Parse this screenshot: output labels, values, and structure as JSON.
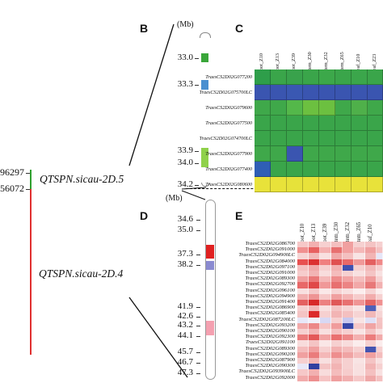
{
  "panels": {
    "b": "B",
    "c": "C",
    "d": "D",
    "e": "E"
  },
  "unit": "(Mb)",
  "markers": {
    "upper": "96297",
    "lower": "56072"
  },
  "qtl": {
    "upper": "QTSPN.sicau-2D.5",
    "lower": "QTSPN.sicau-2D.4"
  },
  "chr_b": {
    "positions": [
      "33.0",
      "33.3",
      "33.9",
      "34.0",
      "34.2"
    ],
    "block_colors": [
      "#3aa63a",
      "#4a8fd0",
      "#8fd14a"
    ]
  },
  "chr_d": {
    "positions": [
      "34.6",
      "35.0",
      "37.3",
      "38.2",
      "41.9",
      "42.6",
      "43.2",
      "44.1",
      "45.7",
      "46.7",
      "47.3"
    ],
    "block_colors": [
      "#e02020",
      "#8a8ad0",
      "#f4a0b0"
    ]
  },
  "heatmap_c": {
    "columns": [
      "root_Z10",
      "root_Z13",
      "root_Z39",
      "stem_Z30",
      "stem_Z32",
      "stem_Z65",
      "leaf_Z10",
      "leaf_Z23"
    ],
    "genes": [
      "TraesCS2D02G077200",
      "TraesCS2D02G075700LC",
      "TraesCS2D02G079600",
      "TraesCS2D02G077500",
      "TraesCS2D02G074700LC",
      "TraesCS2D02G077900",
      "TraesCS2D02G077400",
      "TraesCS2D02G080600"
    ],
    "colors": [
      [
        "#2e9e4a",
        "#3aa54a",
        "#39a24c",
        "#3aa54a",
        "#3ca84a",
        "#3aa54a",
        "#3ba64b",
        "#3aa54a"
      ],
      [
        "#3a55b0",
        "#3a55b0",
        "#3a58b2",
        "#3a55b0",
        "#3a55b0",
        "#3a55b0",
        "#3a55b0",
        "#3a55b0"
      ],
      [
        "#3fa84a",
        "#3fa84a",
        "#54b84a",
        "#6cc040",
        "#6cc040",
        "#3fa84a",
        "#4fb04a",
        "#3fa84a"
      ],
      [
        "#3aa54a",
        "#3aa54a",
        "#3aa54a",
        "#3aa54a",
        "#3aa54a",
        "#3aa54a",
        "#3aa54a",
        "#3aa54a"
      ],
      [
        "#3aa54a",
        "#3aa54a",
        "#3aa54a",
        "#3aa54a",
        "#3aa54a",
        "#3aa54a",
        "#3aa54a",
        "#3aa54a"
      ],
      [
        "#3fa84a",
        "#3fa84a",
        "#3a55b0",
        "#3fa84a",
        "#3fa84a",
        "#3fa84a",
        "#3fa84a",
        "#3fa84a"
      ],
      [
        "#2f5eb5",
        "#3aa54a",
        "#3aa54a",
        "#3aa54a",
        "#3aa54a",
        "#3aa54a",
        "#3aa54a",
        "#3aa54a"
      ],
      [
        "#e8e23a",
        "#e8e23a",
        "#e6e23a",
        "#e8e23a",
        "#e8e23a",
        "#e8e23a",
        "#e8e23a",
        "#e8e23a"
      ]
    ]
  },
  "heatmap_e": {
    "columns": [
      "root_Z10",
      "root_Z13",
      "root_Z39",
      "stem_Z30",
      "stem_Z32",
      "stem_Z65",
      "leaf_Z10",
      "leaf_Z23"
    ],
    "genes": [
      "TraesCS2D02G086700",
      "TraesCS2D02G091000",
      "TraesCS2D02G094900LC",
      "TraesCS2D02G084000",
      "TraesCS2D02G097100",
      "TraesCS2D02G091000",
      "TraesCS2D02G089300",
      "TraesCS2D02G092700",
      "TraesCS2D02G096100",
      "TraesCS2D02G094900",
      "TraesCS2D02G091400",
      "TraesCS2D02G086900",
      "TraesCS2D02G085400",
      "TraesCS2D02G087200LC",
      "TraesCS2D02G093200",
      "TraesCS2D02G090100",
      "TraesCS2D02G092300",
      "TraesCS2D02G091100",
      "TraesCS2D02G089300",
      "TraesCS2D02G090200",
      "TraesCS2D02G087900",
      "TraesCS2D02G090300",
      "TraesCS2D02G093900LC",
      "TraesCS2D02G092000"
    ],
    "colors": [
      [
        "#f6c8c8",
        "#f2b0b0",
        "#f6d0d0",
        "#f4c0c0",
        "#f0a0a0",
        "#f6d0d0",
        "#f4c4c4",
        "#f6d0d0"
      ],
      [
        "#f09090",
        "#e86060",
        "#f4b0b0",
        "#e87070",
        "#f2a0a0",
        "#f4b8b8",
        "#f0a0a0",
        "#f4c0c0"
      ],
      [
        "#f6d4d4",
        "#f2b8b8",
        "#f8e0e0",
        "#f0a8a8",
        "#f4c0c0",
        "#f8e4e4",
        "#f2b4b4",
        "#e6e6f8"
      ],
      [
        "#e85050",
        "#dc3030",
        "#f08080",
        "#e05050",
        "#e86868",
        "#f09898",
        "#e46060",
        "#f08888"
      ],
      [
        "#f4c0c0",
        "#f0a8a8",
        "#f6d0d0",
        "#f2b0b0",
        "#4050b0",
        "#f6d0d0",
        "#f2b8b8",
        "#f6d0d0"
      ],
      [
        "#f6cccc",
        "#f2b4b4",
        "#f8dcdc",
        "#f4bcbc",
        "#f6d0d0",
        "#f8e0e0",
        "#f4c4c4",
        "#f8e0e0"
      ],
      [
        "#f0a0a0",
        "#ea7878",
        "#f4b8b8",
        "#ee8c8c",
        "#f2a4a4",
        "#f4bcbc",
        "#f09c9c",
        "#f6d0d0"
      ],
      [
        "#e86868",
        "#e04848",
        "#f09898",
        "#e87070",
        "#ec8484",
        "#f2a8a8",
        "#e87878",
        "#f2b0b0"
      ],
      [
        "#f8e0e0",
        "#f4c8c8",
        "#fae8e8",
        "#f6d4d4",
        "#f8e0e0",
        "#fbeeee",
        "#f6d4d4",
        "#fbeeee"
      ],
      [
        "#f2b0b0",
        "#ee9494",
        "#f6c8c8",
        "#f0a0a0",
        "#f4b4b4",
        "#f6cccc",
        "#f2acac",
        "#f6d0d0"
      ],
      [
        "#e46060",
        "#d82828",
        "#ec8080",
        "#e05858",
        "#e87070",
        "#f09494",
        "#e46464",
        "#f09090"
      ],
      [
        "#f6d0d0",
        "#f2b8b8",
        "#f8e0e0",
        "#f4c4c4",
        "#f6d4d4",
        "#f8e4e4",
        "#5060b8",
        "#f8e0e0"
      ],
      [
        "#f4c4c4",
        "#dc2c2c",
        "#f6d0d0",
        "#f2b4b4",
        "#f4c0c0",
        "#f6d4d4",
        "#f2b8b8",
        "#f6d4d4"
      ],
      [
        "#e8e8f8",
        "#f0f0fa",
        "#d8d8f4",
        "#f6d0d0",
        "#c8c8ee",
        "#f8e4e4",
        "#e0e0f6",
        "#f4c4c4"
      ],
      [
        "#f2aaaa",
        "#ec8888",
        "#f6c4c4",
        "#f09c9c",
        "#3848a8",
        "#f6c8c8",
        "#f0a4a4",
        "#f4c0c0"
      ],
      [
        "#f6d0d0",
        "#f2b4b4",
        "#f8e0e0",
        "#f4c0c0",
        "#f6d0d0",
        "#f8e4e4",
        "#f4c4c4",
        "#f8e0e0"
      ],
      [
        "#ec7c7c",
        "#e45858",
        "#f2a4a4",
        "#ea7070",
        "#ee8888",
        "#f4b0b0",
        "#ec7c7c",
        "#f2aaaa"
      ],
      [
        "#f8dcdc",
        "#f4c4c4",
        "#fae6e6",
        "#f6d0d0",
        "#f8dcdc",
        "#fbecec",
        "#f6d0d0",
        "#fbecec"
      ],
      [
        "#f4bcbc",
        "#f0a0a0",
        "#f6d0d0",
        "#f2b0b0",
        "#f4bcbc",
        "#f6d0d0",
        "#4454b0",
        "#f6d0d0"
      ],
      [
        "#f0a0a0",
        "#ea7c7c",
        "#f4b8b8",
        "#ee8e8e",
        "#f0a4a4",
        "#f4bcbc",
        "#f0a0a0",
        "#f4bcbc"
      ],
      [
        "#f6d0d0",
        "#f2b4b4",
        "#f8e0e0",
        "#f4c0c0",
        "#f6d0d0",
        "#f8e4e4",
        "#f4c4c4",
        "#f8e0e0"
      ],
      [
        "#e8e8f8",
        "#3040a0",
        "#f4c4c4",
        "#f2b4b4",
        "#f6d0d0",
        "#f8e0e0",
        "#f2b4b4",
        "#f6d0d0"
      ],
      [
        "#f6c8c8",
        "#f2b0b0",
        "#f8dcdc",
        "#f4bcbc",
        "#f6cccc",
        "#f8e0e0",
        "#f4c0c0",
        "#f8e0e0"
      ],
      [
        "#f2acac",
        "#ee9090",
        "#f6c4c4",
        "#f0a0a0",
        "#f2b0b0",
        "#f6c8c8",
        "#f0a8a8",
        "#f4c0c0"
      ]
    ]
  }
}
